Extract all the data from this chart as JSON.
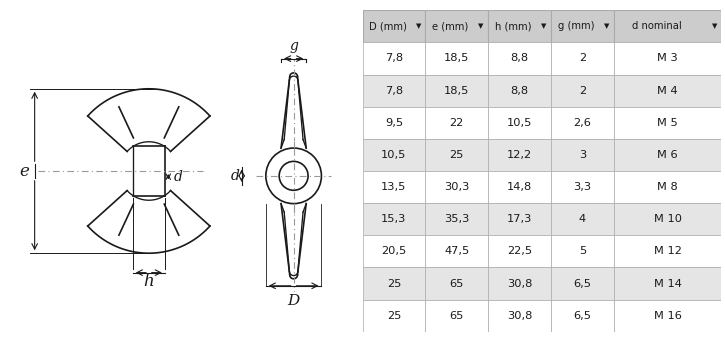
{
  "table_headers": [
    "D (mm)",
    "e (mm)",
    "h (mm)",
    "g (mm)",
    "d nominal"
  ],
  "table_rows": [
    [
      "7,8",
      "18,5",
      "8,8",
      "2",
      "M 3"
    ],
    [
      "7,8",
      "18,5",
      "8,8",
      "2",
      "M 4"
    ],
    [
      "9,5",
      "22",
      "10,5",
      "2,6",
      "M 5"
    ],
    [
      "10,5",
      "25",
      "12,2",
      "3",
      "M 6"
    ],
    [
      "13,5",
      "30,3",
      "14,8",
      "3,3",
      "M 8"
    ],
    [
      "15,3",
      "35,3",
      "17,3",
      "4",
      "M 10"
    ],
    [
      "20,5",
      "47,5",
      "22,5",
      "5",
      "M 12"
    ],
    [
      "25",
      "65",
      "30,8",
      "6,5",
      "M 14"
    ],
    [
      "25",
      "65",
      "30,8",
      "6,5",
      "M 16"
    ]
  ],
  "row_shaded": [
    false,
    true,
    false,
    true,
    false,
    true,
    false,
    true,
    false
  ],
  "header_bg": "#cccccc",
  "row_bg_light": "#ffffff",
  "row_bg_dark": "#e5e5e5",
  "border_color": "#aaaaaa",
  "text_color": "#1a1a1a",
  "diagram_bg": "#ffffff",
  "line_color": "#1a1a1a",
  "dash_color": "#999999"
}
